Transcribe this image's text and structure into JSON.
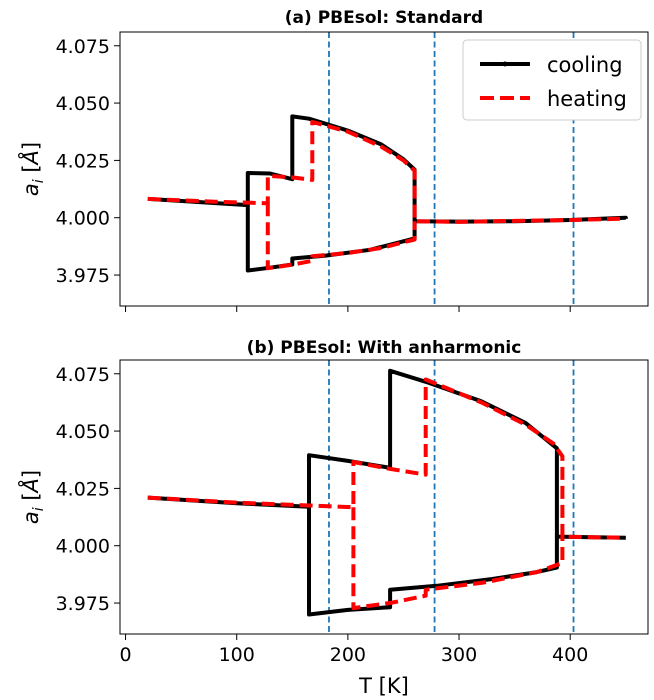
{
  "chart_data": [
    {
      "type": "line",
      "title": "(a) PBEsol: Standard",
      "xlabel": "",
      "ylabel": "a_i [Å]",
      "xlim": [
        -5,
        470
      ],
      "ylim": [
        3.9615,
        4.081
      ],
      "xticks": [
        0,
        100,
        200,
        300,
        400
      ],
      "xtick_labels": [
        "",
        "",
        "",
        "",
        ""
      ],
      "yticks": [
        3.975,
        4.0,
        4.025,
        4.05,
        4.075
      ],
      "ytick_labels": [
        "3.975",
        "4.000",
        "4.025",
        "4.050",
        "4.075"
      ],
      "vlines": [
        183,
        278,
        403
      ],
      "legend": {
        "position": "top-right",
        "entries": [
          "cooling",
          "heating"
        ]
      },
      "series": [
        {
          "name": "cooling",
          "color": "#000000",
          "style": "solid",
          "segments": [
            [
              [
                20,
                4.0082
              ],
              [
                110,
                4.0055
              ],
              [
                110,
                4.0195
              ],
              [
                130,
                4.0193
              ],
              [
                150,
                4.0168
              ],
              [
                150,
                4.0442
              ],
              [
                165,
                4.0432
              ],
              [
                200,
                4.038
              ],
              [
                230,
                4.032
              ],
              [
                250,
                4.0255
              ],
              [
                260,
                4.021
              ],
              [
                260,
                3.9985
              ],
              [
                300,
                3.9983
              ],
              [
                350,
                3.9985
              ],
              [
                400,
                3.999
              ],
              [
                450,
                4.0
              ],
              [
                450,
                3.9995
              ]
            ],
            [
              [
                110,
                4.0055
              ],
              [
                110,
                3.977
              ],
              [
                130,
                3.9782
              ],
              [
                150,
                3.9796
              ],
              [
                150,
                3.9822
              ],
              [
                180,
                3.9835
              ],
              [
                220,
                3.986
              ],
              [
                260,
                3.991
              ],
              [
                260,
                3.9985
              ]
            ]
          ]
        },
        {
          "name": "heating",
          "color": "#ff0000",
          "style": "dashed",
          "segments": [
            [
              [
                20,
                4.0082
              ],
              [
                80,
                4.007
              ],
              [
                128,
                4.0063
              ],
              [
                128,
                4.0183
              ],
              [
                150,
                4.0176
              ],
              [
                168,
                4.0165
              ],
              [
                168,
                4.0418
              ],
              [
                200,
                4.0375
              ],
              [
                230,
                4.031
              ],
              [
                250,
                4.025
              ],
              [
                260,
                4.0205
              ],
              [
                260,
                3.9985
              ],
              [
                300,
                3.9982
              ],
              [
                350,
                3.9986
              ],
              [
                400,
                3.999
              ],
              [
                450,
                3.9996
              ]
            ],
            [
              [
                128,
                4.0063
              ],
              [
                128,
                3.978
              ],
              [
                150,
                3.9795
              ],
              [
                168,
                3.9812
              ],
              [
                168,
                3.9832
              ],
              [
                200,
                3.9846
              ],
              [
                230,
                3.9868
              ],
              [
                260,
                3.9905
              ],
              [
                260,
                3.9985
              ]
            ]
          ]
        }
      ]
    },
    {
      "type": "line",
      "title": "(b) PBEsol: With anharmonic",
      "xlabel": "T [K]",
      "ylabel": "a_i [Å]",
      "xlim": [
        -5,
        470
      ],
      "ylim": [
        3.9615,
        4.081
      ],
      "xticks": [
        0,
        100,
        200,
        300,
        400
      ],
      "xtick_labels": [
        "0",
        "100",
        "200",
        "300",
        "400"
      ],
      "yticks": [
        3.975,
        4.0,
        4.025,
        4.05,
        4.075
      ],
      "ytick_labels": [
        "3.975",
        "4.000",
        "4.025",
        "4.050",
        "4.075"
      ],
      "vlines": [
        183,
        278,
        403
      ],
      "series": [
        {
          "name": "cooling",
          "color": "#000000",
          "style": "solid",
          "segments": [
            [
              [
                20,
                4.021
              ],
              [
                100,
                4.0185
              ],
              [
                165,
                4.017
              ],
              [
                165,
                4.0395
              ],
              [
                200,
                4.037
              ],
              [
                238,
                4.034
              ],
              [
                238,
                4.0763
              ],
              [
                270,
                4.0715
              ],
              [
                320,
                4.063
              ],
              [
                360,
                4.0535
              ],
              [
                388,
                4.0425
              ],
              [
                388,
                4.004
              ],
              [
                420,
                4.0037
              ],
              [
                450,
                4.0035
              ]
            ],
            [
              [
                165,
                4.017
              ],
              [
                165,
                3.97
              ],
              [
                200,
                3.972
              ],
              [
                238,
                3.9732
              ],
              [
                238,
                3.9808
              ],
              [
                280,
                3.9825
              ],
              [
                330,
                3.9855
              ],
              [
                370,
                3.9885
              ],
              [
                388,
                3.9905
              ],
              [
                388,
                4.004
              ]
            ]
          ]
        },
        {
          "name": "heating",
          "color": "#ff0000",
          "style": "dashed",
          "segments": [
            [
              [
                20,
                4.021
              ],
              [
                100,
                4.0188
              ],
              [
                180,
                4.0173
              ],
              [
                205,
                4.0168
              ],
              [
                205,
                4.0365
              ],
              [
                238,
                4.0335
              ],
              [
                270,
                4.031
              ],
              [
                270,
                4.0725
              ],
              [
                320,
                4.0625
              ],
              [
                360,
                4.0528
              ],
              [
                385,
                4.0445
              ],
              [
                393,
                4.039
              ],
              [
                393,
                4.004
              ],
              [
                420,
                4.0037
              ],
              [
                450,
                4.0035
              ]
            ],
            [
              [
                205,
                4.0168
              ],
              [
                205,
                3.9728
              ],
              [
                240,
                3.9752
              ],
              [
                270,
                3.9782
              ],
              [
                270,
                3.9808
              ],
              [
                320,
                3.9838
              ],
              [
                370,
                3.9885
              ],
              [
                393,
                3.9925
              ],
              [
                393,
                4.004
              ]
            ]
          ]
        }
      ]
    }
  ]
}
